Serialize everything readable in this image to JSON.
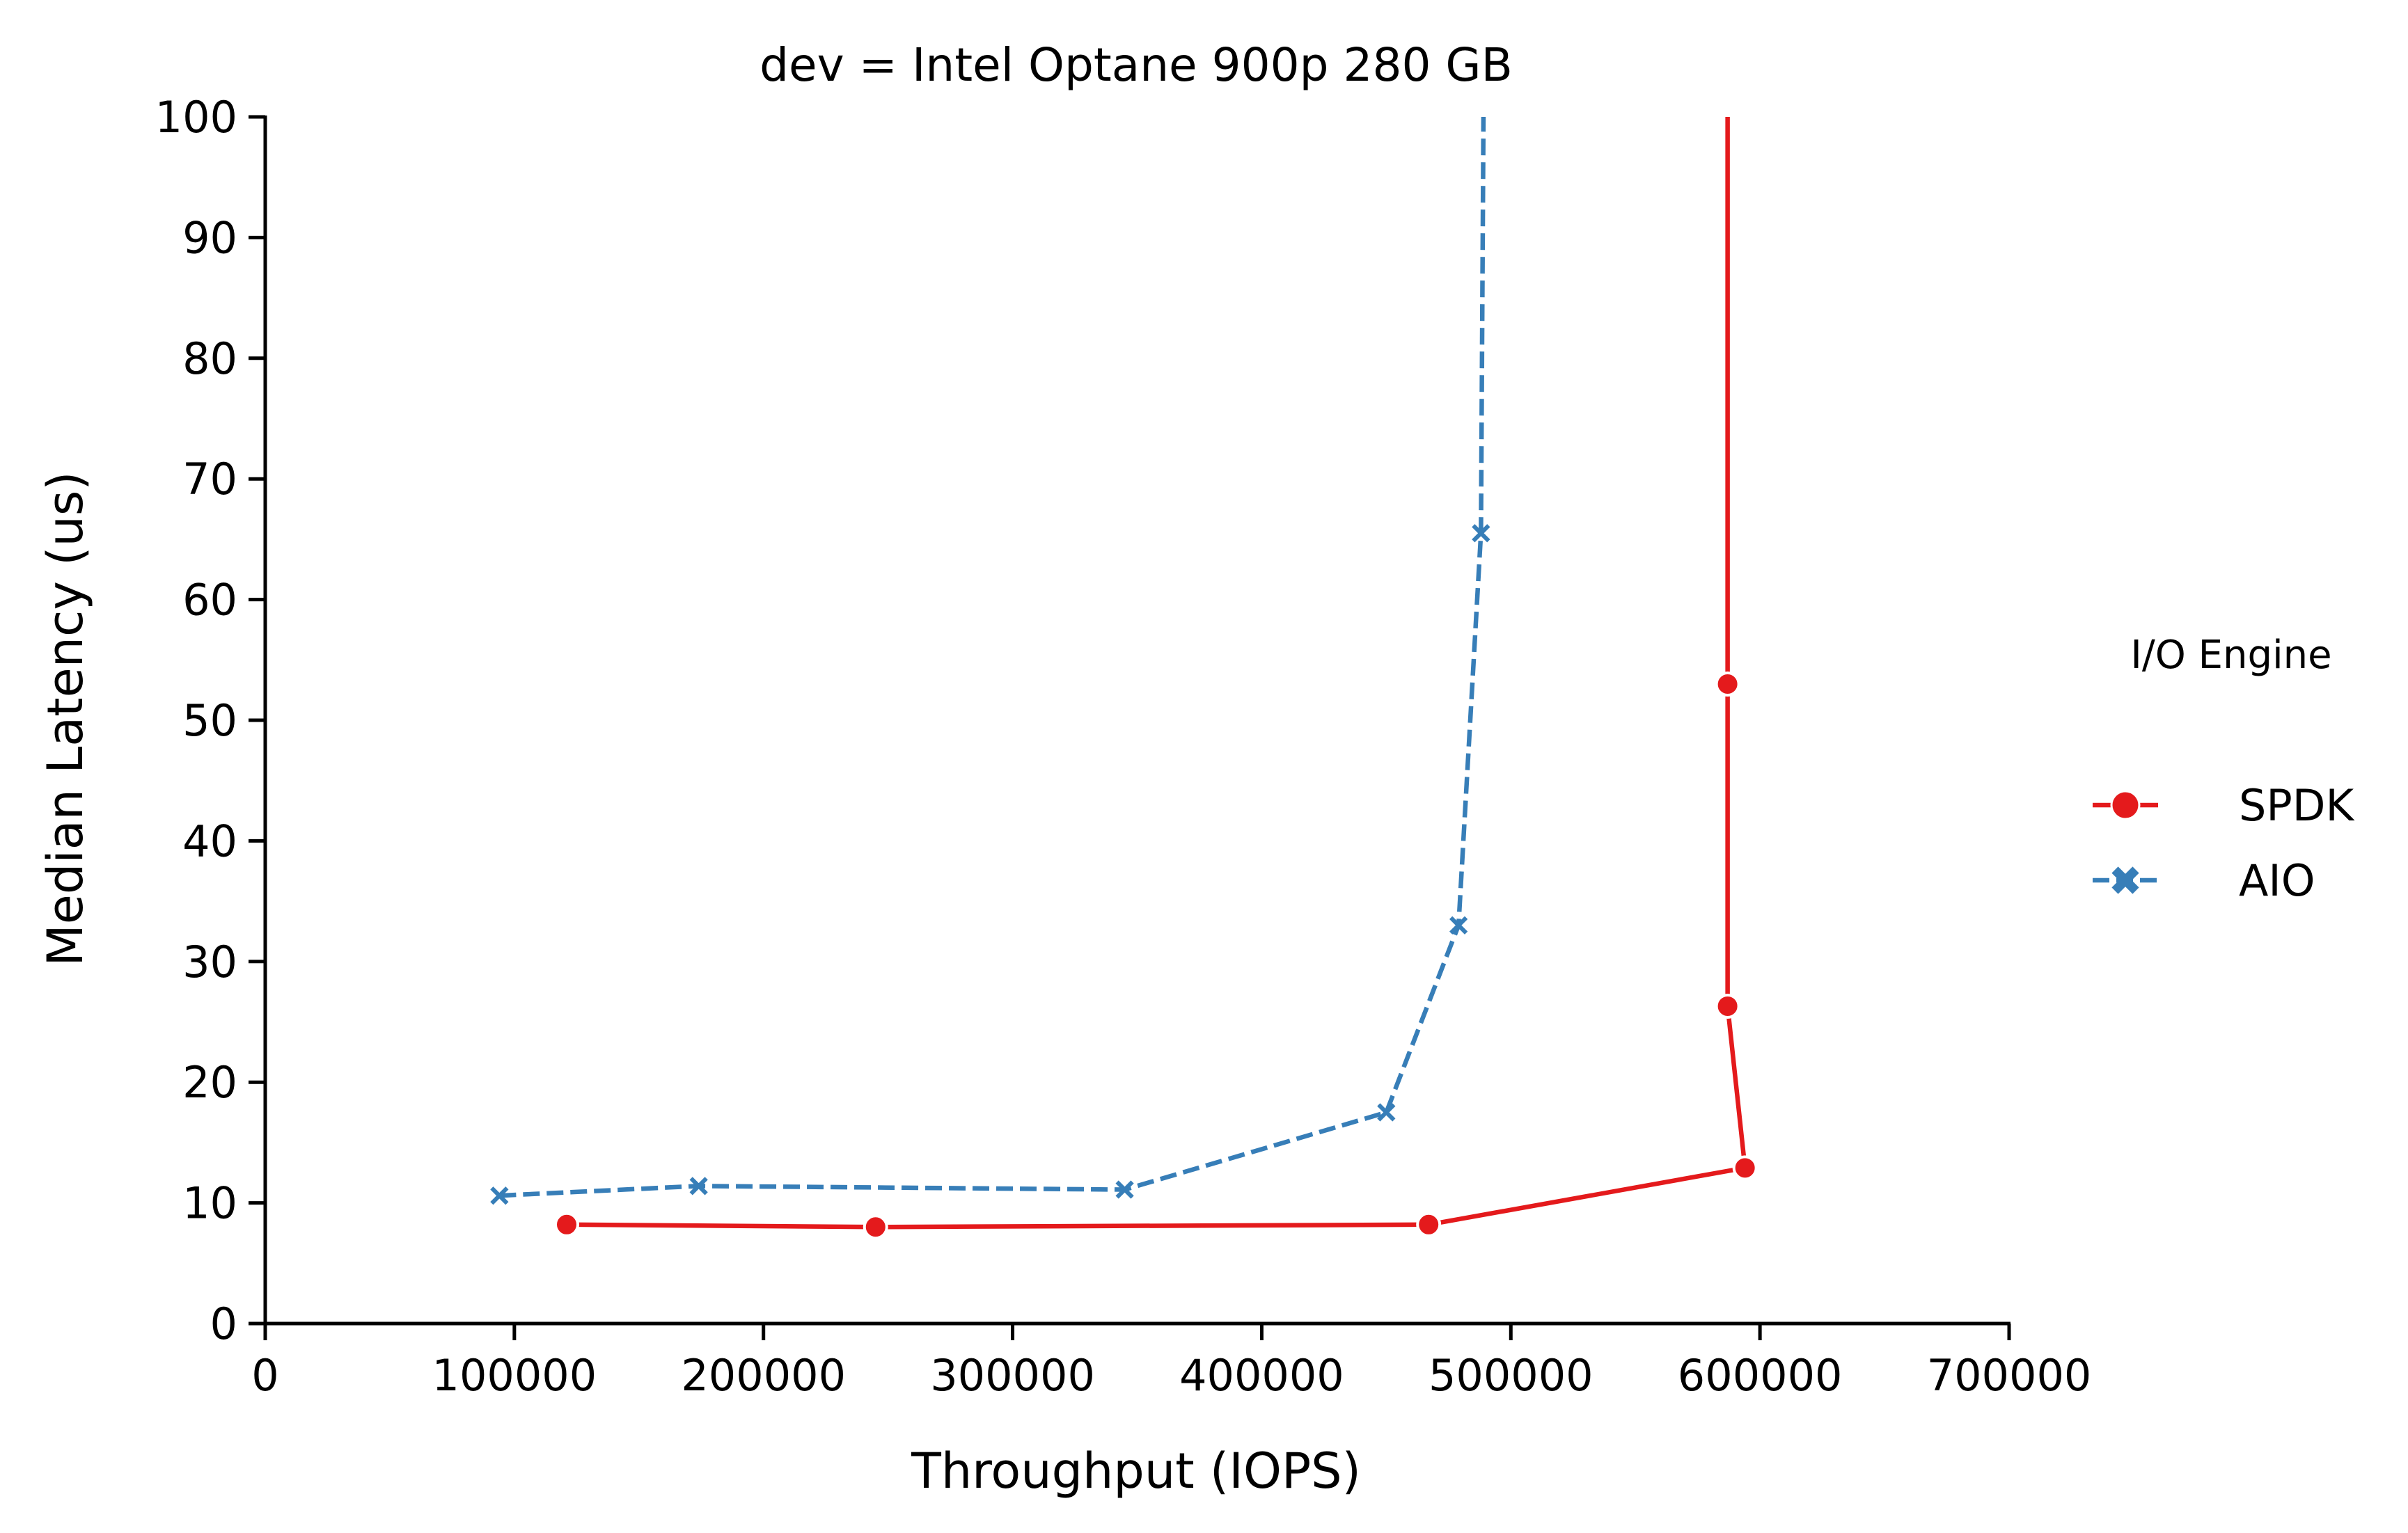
{
  "chart_data": {
    "type": "line",
    "title": "dev = Intel Optane 900p 280 GB",
    "xlabel": "Throughput (IOPS)",
    "ylabel": "Median Latency (us)",
    "xlim": [
      0,
      700000
    ],
    "ylim": [
      0,
      100
    ],
    "x_ticks": [
      "0",
      "100000",
      "200000",
      "300000",
      "400000",
      "500000",
      "600000",
      "700000"
    ],
    "y_ticks": [
      "0",
      "10",
      "20",
      "30",
      "40",
      "50",
      "60",
      "70",
      "80",
      "90",
      "100"
    ],
    "grid": false,
    "legend": {
      "title": "I/O Engine",
      "placement": "right"
    },
    "series": [
      {
        "name": "SPDK",
        "color": "#e41a1c",
        "marker": "circle",
        "line_style": "solid",
        "points": [
          {
            "x": 121000,
            "y": 8.2
          },
          {
            "x": 245000,
            "y": 8.0
          },
          {
            "x": 467000,
            "y": 8.2
          },
          {
            "x": 594000,
            "y": 12.9
          },
          {
            "x": 587000,
            "y": 26.3
          },
          {
            "x": 587000,
            "y": 53.0
          }
        ],
        "extends_to": {
          "x": 587000,
          "y": 100
        }
      },
      {
        "name": "AIO",
        "color": "#377eb8",
        "marker": "x",
        "line_style": "dashed",
        "points": [
          {
            "x": 94000,
            "y": 10.6
          },
          {
            "x": 174000,
            "y": 11.4
          },
          {
            "x": 345000,
            "y": 11.1
          },
          {
            "x": 450000,
            "y": 17.5
          },
          {
            "x": 479000,
            "y": 33.0
          },
          {
            "x": 488000,
            "y": 65.5
          }
        ],
        "extends_to": {
          "x": 489000,
          "y": 100
        }
      }
    ]
  }
}
